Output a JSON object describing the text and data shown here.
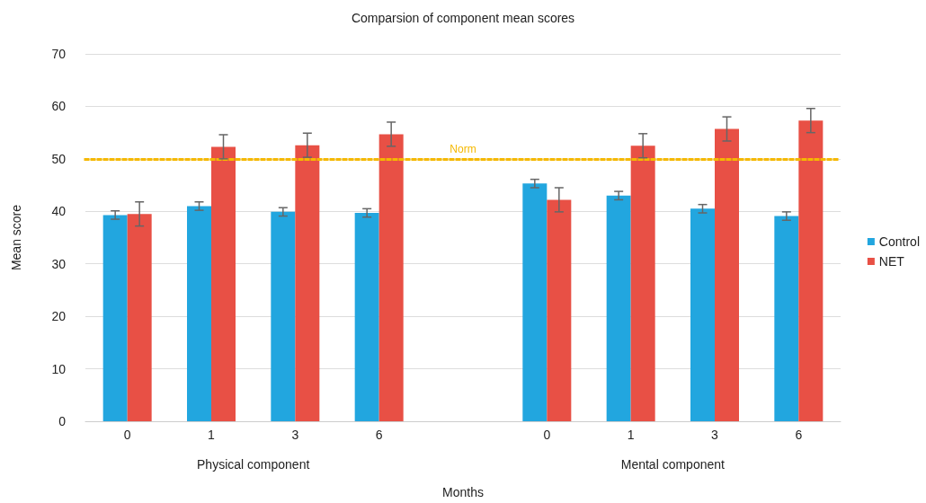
{
  "chart_data": {
    "type": "bar",
    "title": "Comparsion of component mean scores",
    "xlabel": "Months",
    "ylabel": "Mean score",
    "categories": [
      "0",
      "1",
      "3",
      "6",
      null,
      "0",
      "1",
      "3",
      "6"
    ],
    "series": [
      {
        "name": "Control",
        "color": "#22a6df",
        "values": [
          39.3,
          41.0,
          39.9,
          39.7,
          null,
          45.3,
          43.0,
          40.5,
          39.1
        ],
        "errors": [
          0.8,
          0.8,
          0.8,
          0.8,
          null,
          0.8,
          0.8,
          0.8,
          0.8
        ]
      },
      {
        "name": "NET",
        "color": "#e85045",
        "values": [
          39.5,
          52.3,
          52.6,
          54.7,
          null,
          42.2,
          52.5,
          55.7,
          57.3
        ],
        "errors": [
          2.3,
          2.3,
          2.3,
          2.3,
          null,
          2.3,
          2.3,
          2.3,
          2.3
        ]
      }
    ],
    "ylim": [
      0,
      70
    ],
    "yticks": [
      0,
      10,
      20,
      30,
      40,
      50,
      60,
      70
    ],
    "grid": "y",
    "legend": "right",
    "ref_lines": [
      {
        "axis": "y",
        "value": 50,
        "label": "Norm",
        "color": "#f5b800",
        "line_style": "dotted"
      }
    ],
    "annotations": [
      "Physical component",
      "Mental component"
    ]
  }
}
